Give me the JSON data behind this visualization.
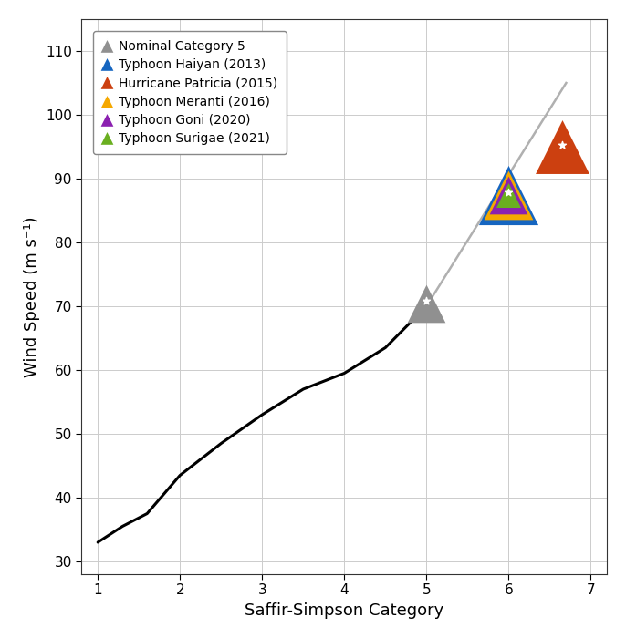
{
  "title": "",
  "xlabel": "Saffir-Simpson Category",
  "ylabel": "Wind Speed (m s⁻¹)",
  "xlim": [
    0.8,
    7.2
  ],
  "ylim": [
    28,
    115
  ],
  "xticks": [
    1,
    2,
    3,
    4,
    5,
    6,
    7
  ],
  "yticks": [
    30,
    40,
    50,
    60,
    70,
    80,
    90,
    100,
    110
  ],
  "black_curve_x": [
    1.0,
    1.3,
    1.6,
    2.0,
    2.5,
    3.0,
    3.5,
    4.0,
    4.5,
    5.0
  ],
  "black_curve_y": [
    33.0,
    35.5,
    37.5,
    43.5,
    48.5,
    53.0,
    57.0,
    59.5,
    63.5,
    70.0
  ],
  "gray_line_x": [
    5.0,
    6.7
  ],
  "gray_line_y": [
    70.0,
    105.0
  ],
  "nominal_cat5_x": 5.0,
  "nominal_cat5_y": 70.5,
  "nominal_cat5_color": "#808080",
  "haiyan_x": 6.0,
  "haiyan_y": 87.5,
  "patricia_x": 6.65,
  "patricia_y": 95.0,
  "meranti_x": 6.0,
  "meranti_y": 87.5,
  "goni_x": 6.0,
  "goni_y": 87.5,
  "surigae_x": 6.0,
  "surigae_y": 87.5,
  "color_haiyan": "#1565C0",
  "color_patricia": "#CC4010",
  "color_meranti": "#F5A800",
  "color_goni": "#8B20B0",
  "color_surigae": "#6AAF20",
  "color_nominal": "#909090",
  "legend_labels": [
    "Nominal Category 5",
    "Typhoon Haiyan (2013)",
    "Hurricane Patricia (2015)",
    "Typhoon Meranti (2016)",
    "Typhoon Goni (2020)",
    "Typhoon Surigae (2021)"
  ],
  "background_color": "#ffffff",
  "grid_color": "#cccccc"
}
